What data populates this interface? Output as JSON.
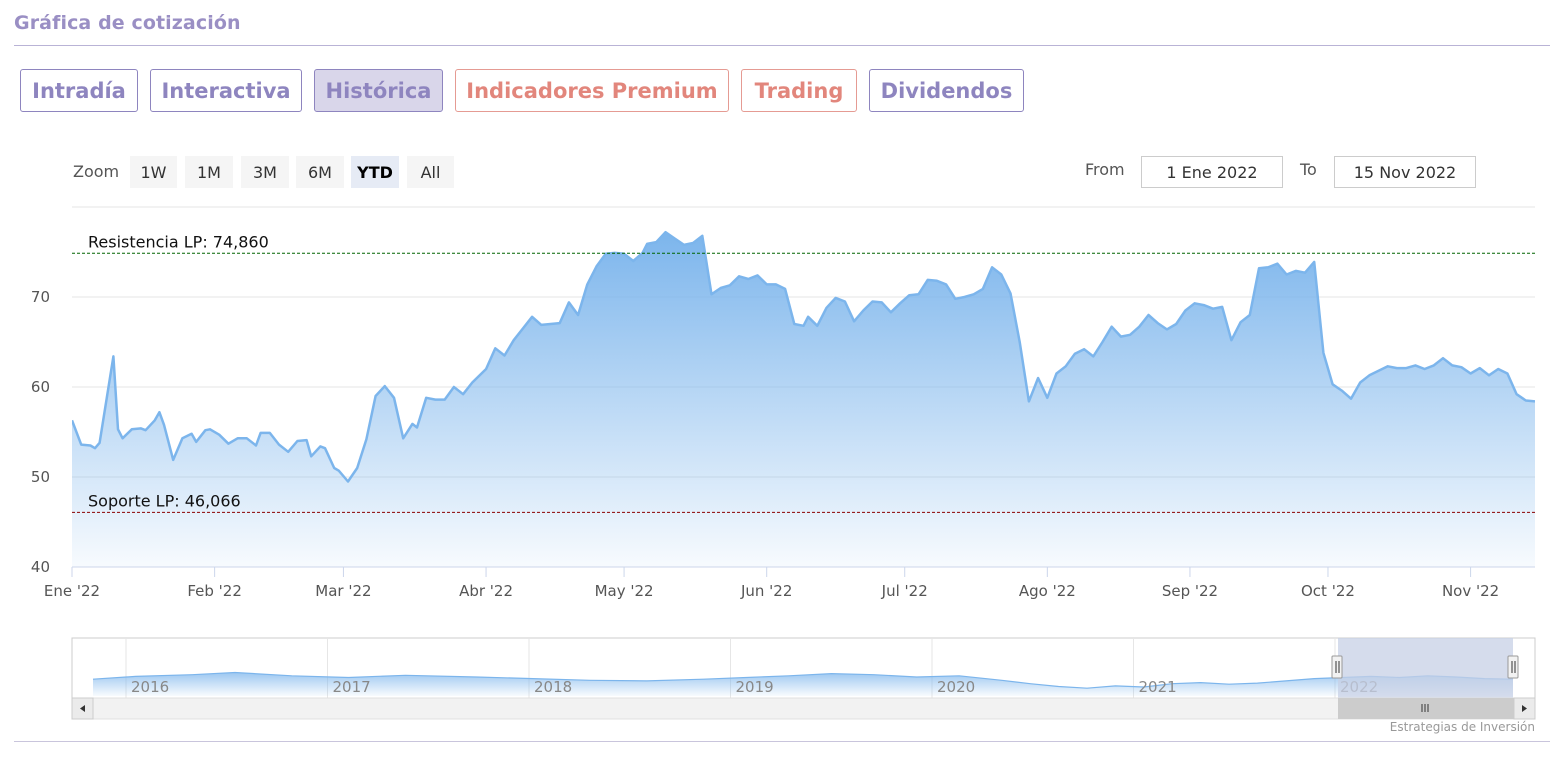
{
  "section": {
    "title": "Gráfica de cotización"
  },
  "tabs": [
    {
      "label": "Intradía",
      "active": false,
      "premium": false
    },
    {
      "label": "Interactiva",
      "active": false,
      "premium": false
    },
    {
      "label": "Histórica",
      "active": true,
      "premium": false
    },
    {
      "label": "Indicadores Premium",
      "active": false,
      "premium": true
    },
    {
      "label": "Trading",
      "active": false,
      "premium": true
    },
    {
      "label": "Dividendos",
      "active": false,
      "premium": false
    }
  ],
  "range_selector": {
    "zoom_label": "Zoom",
    "buttons": [
      {
        "label": "1W",
        "active": false
      },
      {
        "label": "1M",
        "active": false
      },
      {
        "label": "3M",
        "active": false
      },
      {
        "label": "6M",
        "active": false
      },
      {
        "label": "YTD",
        "active": true
      },
      {
        "label": "All",
        "active": false
      }
    ],
    "from_label": "From",
    "from_value": "1 Ene 2022",
    "to_label": "To",
    "to_value": "15 Nov 2022"
  },
  "credits": "Estrategias de Inversión",
  "colors": {
    "series": "#7cb5ec",
    "resistance": "#006400",
    "support": "#8b0000",
    "grid": "#e6e6e6",
    "navigator_mask": "#c7d0e6"
  },
  "chart_data": {
    "type": "area",
    "x_type": "date",
    "ylim": [
      40,
      80
    ],
    "yticks": [
      40,
      50,
      60,
      70
    ],
    "xlim": [
      "2022-01-01",
      "2022-11-15"
    ],
    "xticks": [
      {
        "date": "2022-01-01",
        "label": "Ene '22"
      },
      {
        "date": "2022-02-01",
        "label": "Feb '22"
      },
      {
        "date": "2022-03-01",
        "label": "Mar '22"
      },
      {
        "date": "2022-04-01",
        "label": "Abr '22"
      },
      {
        "date": "2022-05-01",
        "label": "May '22"
      },
      {
        "date": "2022-06-01",
        "label": "Jun '22"
      },
      {
        "date": "2022-07-01",
        "label": "Jul '22"
      },
      {
        "date": "2022-08-01",
        "label": "Ago '22"
      },
      {
        "date": "2022-09-01",
        "label": "Sep '22"
      },
      {
        "date": "2022-10-01",
        "label": "Oct '22"
      },
      {
        "date": "2022-11-01",
        "label": "Nov '22"
      }
    ],
    "plot_lines": [
      {
        "value": 74.86,
        "label": "Resistencia LP: 74,860",
        "style": "dashed",
        "color": "#006400"
      },
      {
        "value": 46.066,
        "label": "Soporte LP: 46,066",
        "style": "dashed",
        "color": "#8b0000"
      }
    ],
    "points": [
      [
        "2022-01-01",
        56.3
      ],
      [
        "2022-01-03",
        53.6
      ],
      [
        "2022-01-05",
        53.5
      ],
      [
        "2022-01-06",
        53.2
      ],
      [
        "2022-01-07",
        53.8
      ],
      [
        "2022-01-10",
        63.4
      ],
      [
        "2022-01-11",
        55.3
      ],
      [
        "2022-01-12",
        54.3
      ],
      [
        "2022-01-14",
        55.3
      ],
      [
        "2022-01-16",
        55.4
      ],
      [
        "2022-01-17",
        55.2
      ],
      [
        "2022-01-19",
        56.3
      ],
      [
        "2022-01-20",
        57.2
      ],
      [
        "2022-01-21",
        55.8
      ],
      [
        "2022-01-23",
        51.9
      ],
      [
        "2022-01-25",
        54.3
      ],
      [
        "2022-01-27",
        54.8
      ],
      [
        "2022-01-28",
        53.9
      ],
      [
        "2022-01-30",
        55.2
      ],
      [
        "2022-01-31",
        55.3
      ],
      [
        "2022-02-02",
        54.7
      ],
      [
        "2022-02-04",
        53.7
      ],
      [
        "2022-02-06",
        54.3
      ],
      [
        "2022-02-08",
        54.3
      ],
      [
        "2022-02-10",
        53.5
      ],
      [
        "2022-02-11",
        54.9
      ],
      [
        "2022-02-13",
        54.9
      ],
      [
        "2022-02-15",
        53.6
      ],
      [
        "2022-02-17",
        52.8
      ],
      [
        "2022-02-19",
        54.0
      ],
      [
        "2022-02-21",
        54.1
      ],
      [
        "2022-02-22",
        52.3
      ],
      [
        "2022-02-24",
        53.4
      ],
      [
        "2022-02-25",
        53.2
      ],
      [
        "2022-02-27",
        51.0
      ],
      [
        "2022-02-28",
        50.7
      ],
      [
        "2022-03-02",
        49.5
      ],
      [
        "2022-03-04",
        51.0
      ],
      [
        "2022-03-06",
        54.2
      ],
      [
        "2022-03-08",
        59.0
      ],
      [
        "2022-03-10",
        60.1
      ],
      [
        "2022-03-12",
        58.8
      ],
      [
        "2022-03-14",
        54.3
      ],
      [
        "2022-03-16",
        55.9
      ],
      [
        "2022-03-17",
        55.5
      ],
      [
        "2022-03-19",
        58.8
      ],
      [
        "2022-03-21",
        58.6
      ],
      [
        "2022-03-23",
        58.6
      ],
      [
        "2022-03-25",
        60.0
      ],
      [
        "2022-03-27",
        59.2
      ],
      [
        "2022-03-29",
        60.5
      ],
      [
        "2022-04-01",
        62.0
      ],
      [
        "2022-04-03",
        64.3
      ],
      [
        "2022-04-05",
        63.5
      ],
      [
        "2022-04-07",
        65.2
      ],
      [
        "2022-04-09",
        66.5
      ],
      [
        "2022-04-11",
        67.8
      ],
      [
        "2022-04-13",
        66.9
      ],
      [
        "2022-04-15",
        67.0
      ],
      [
        "2022-04-17",
        67.1
      ],
      [
        "2022-04-19",
        69.4
      ],
      [
        "2022-04-21",
        68.0
      ],
      [
        "2022-04-23",
        71.4
      ],
      [
        "2022-04-25",
        73.4
      ],
      [
        "2022-04-27",
        74.8
      ],
      [
        "2022-04-29",
        74.9
      ],
      [
        "2022-05-01",
        74.8
      ],
      [
        "2022-05-03",
        74.0
      ],
      [
        "2022-05-05",
        74.9
      ],
      [
        "2022-05-06",
        75.9
      ],
      [
        "2022-05-08",
        76.1
      ],
      [
        "2022-05-10",
        77.2
      ],
      [
        "2022-05-12",
        76.5
      ],
      [
        "2022-05-14",
        75.8
      ],
      [
        "2022-05-16",
        76.0
      ],
      [
        "2022-05-18",
        76.8
      ],
      [
        "2022-05-20",
        70.3
      ],
      [
        "2022-05-22",
        71.0
      ],
      [
        "2022-05-24",
        71.3
      ],
      [
        "2022-05-26",
        72.3
      ],
      [
        "2022-05-28",
        72.0
      ],
      [
        "2022-05-30",
        72.4
      ],
      [
        "2022-06-01",
        71.4
      ],
      [
        "2022-06-03",
        71.4
      ],
      [
        "2022-06-05",
        70.9
      ],
      [
        "2022-06-07",
        67.0
      ],
      [
        "2022-06-09",
        66.8
      ],
      [
        "2022-06-10",
        67.8
      ],
      [
        "2022-06-12",
        66.8
      ],
      [
        "2022-06-14",
        68.8
      ],
      [
        "2022-06-16",
        69.9
      ],
      [
        "2022-06-18",
        69.5
      ],
      [
        "2022-06-20",
        67.3
      ],
      [
        "2022-06-22",
        68.5
      ],
      [
        "2022-06-24",
        69.5
      ],
      [
        "2022-06-26",
        69.4
      ],
      [
        "2022-06-28",
        68.3
      ],
      [
        "2022-06-30",
        69.3
      ],
      [
        "2022-07-02",
        70.2
      ],
      [
        "2022-07-04",
        70.3
      ],
      [
        "2022-07-06",
        71.9
      ],
      [
        "2022-07-08",
        71.8
      ],
      [
        "2022-07-10",
        71.4
      ],
      [
        "2022-07-12",
        69.8
      ],
      [
        "2022-07-14",
        70.0
      ],
      [
        "2022-07-16",
        70.3
      ],
      [
        "2022-07-18",
        70.9
      ],
      [
        "2022-07-20",
        73.3
      ],
      [
        "2022-07-22",
        72.5
      ],
      [
        "2022-07-24",
        70.4
      ],
      [
        "2022-07-26",
        65.0
      ],
      [
        "2022-07-28",
        58.4
      ],
      [
        "2022-07-30",
        61.0
      ],
      [
        "2022-08-01",
        58.8
      ],
      [
        "2022-08-03",
        61.5
      ],
      [
        "2022-08-05",
        62.3
      ],
      [
        "2022-08-07",
        63.7
      ],
      [
        "2022-08-09",
        64.2
      ],
      [
        "2022-08-11",
        63.4
      ],
      [
        "2022-08-13",
        65.0
      ],
      [
        "2022-08-15",
        66.7
      ],
      [
        "2022-08-17",
        65.6
      ],
      [
        "2022-08-19",
        65.8
      ],
      [
        "2022-08-21",
        66.7
      ],
      [
        "2022-08-23",
        68.0
      ],
      [
        "2022-08-25",
        67.1
      ],
      [
        "2022-08-27",
        66.4
      ],
      [
        "2022-08-29",
        67.0
      ],
      [
        "2022-08-31",
        68.5
      ],
      [
        "2022-09-02",
        69.3
      ],
      [
        "2022-09-04",
        69.1
      ],
      [
        "2022-09-06",
        68.7
      ],
      [
        "2022-09-08",
        68.9
      ],
      [
        "2022-09-10",
        65.2
      ],
      [
        "2022-09-12",
        67.2
      ],
      [
        "2022-09-14",
        68.0
      ],
      [
        "2022-09-16",
        73.2
      ],
      [
        "2022-09-18",
        73.3
      ],
      [
        "2022-09-20",
        73.7
      ],
      [
        "2022-09-22",
        72.5
      ],
      [
        "2022-09-24",
        72.9
      ],
      [
        "2022-09-26",
        72.7
      ],
      [
        "2022-09-28",
        73.9
      ],
      [
        "2022-09-30",
        63.8
      ],
      [
        "2022-10-02",
        60.3
      ],
      [
        "2022-10-04",
        59.6
      ],
      [
        "2022-10-06",
        58.7
      ],
      [
        "2022-10-08",
        60.5
      ],
      [
        "2022-10-10",
        61.3
      ],
      [
        "2022-10-12",
        61.8
      ],
      [
        "2022-10-14",
        62.3
      ],
      [
        "2022-10-16",
        62.1
      ],
      [
        "2022-10-18",
        62.1
      ],
      [
        "2022-10-20",
        62.4
      ],
      [
        "2022-10-22",
        62.0
      ],
      [
        "2022-10-24",
        62.4
      ],
      [
        "2022-10-26",
        63.2
      ],
      [
        "2022-10-28",
        62.4
      ],
      [
        "2022-10-30",
        62.2
      ],
      [
        "2022-11-01",
        61.5
      ],
      [
        "2022-11-03",
        62.1
      ],
      [
        "2022-11-05",
        61.3
      ],
      [
        "2022-11-07",
        62.0
      ],
      [
        "2022-11-09",
        61.5
      ],
      [
        "2022-11-11",
        59.2
      ],
      [
        "2022-11-13",
        58.5
      ],
      [
        "2022-11-15",
        58.4
      ]
    ]
  },
  "navigator": {
    "year_labels": [
      "2016",
      "2017",
      "2018",
      "2019",
      "2020",
      "2021",
      "2022"
    ],
    "points": [
      [
        0.0,
        0.3
      ],
      [
        0.03,
        0.35
      ],
      [
        0.07,
        0.38
      ],
      [
        0.1,
        0.42
      ],
      [
        0.14,
        0.36
      ],
      [
        0.18,
        0.33
      ],
      [
        0.22,
        0.37
      ],
      [
        0.27,
        0.34
      ],
      [
        0.31,
        0.31
      ],
      [
        0.35,
        0.28
      ],
      [
        0.39,
        0.27
      ],
      [
        0.43,
        0.3
      ],
      [
        0.46,
        0.33
      ],
      [
        0.49,
        0.36
      ],
      [
        0.52,
        0.4
      ],
      [
        0.55,
        0.38
      ],
      [
        0.58,
        0.34
      ],
      [
        0.61,
        0.36
      ],
      [
        0.64,
        0.28
      ],
      [
        0.66,
        0.22
      ],
      [
        0.68,
        0.17
      ],
      [
        0.7,
        0.14
      ],
      [
        0.72,
        0.18
      ],
      [
        0.74,
        0.16
      ],
      [
        0.76,
        0.22
      ],
      [
        0.78,
        0.24
      ],
      [
        0.8,
        0.21
      ],
      [
        0.82,
        0.23
      ],
      [
        0.84,
        0.27
      ],
      [
        0.86,
        0.31
      ],
      [
        0.88,
        0.33
      ],
      [
        0.9,
        0.35
      ],
      [
        0.92,
        0.33
      ],
      [
        0.94,
        0.36
      ],
      [
        0.96,
        0.34
      ],
      [
        0.98,
        0.31
      ],
      [
        1.0,
        0.3
      ]
    ]
  }
}
